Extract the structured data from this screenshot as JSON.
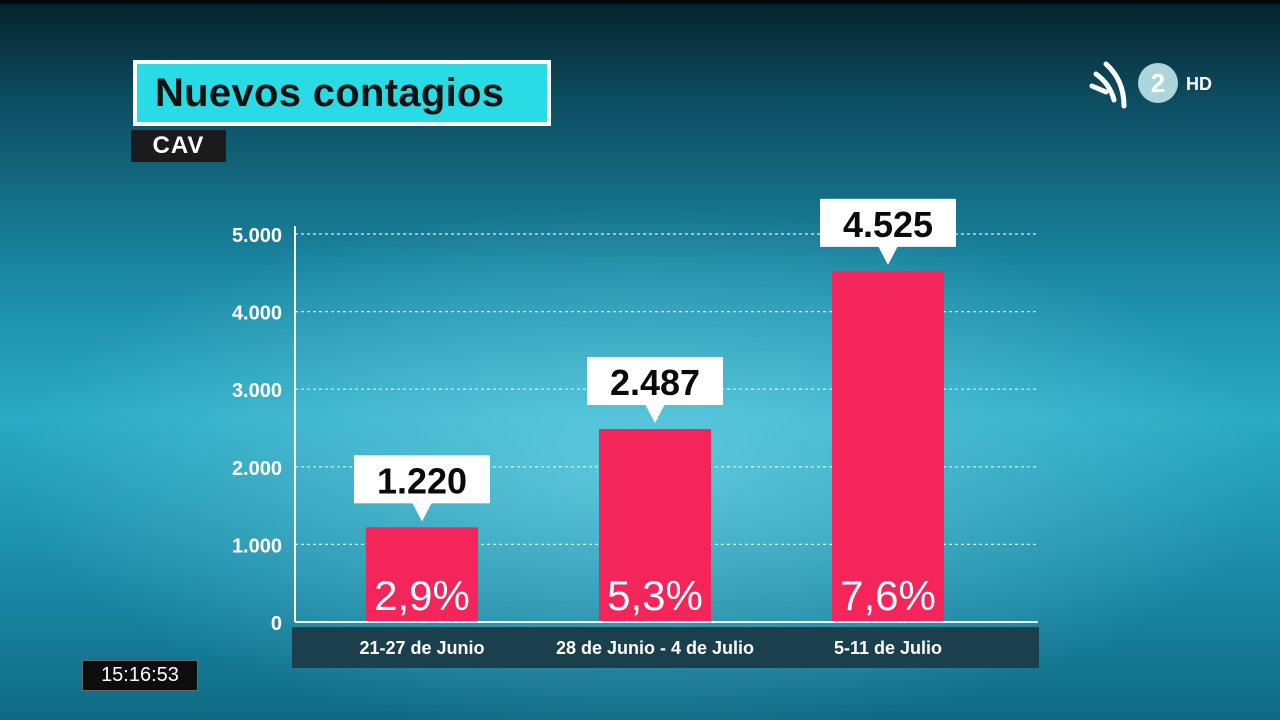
{
  "header": {
    "title": "Nuevos contagios",
    "region": "CAV"
  },
  "channel": {
    "number": "2",
    "quality": "HD"
  },
  "clock": {
    "time": "15:16:53"
  },
  "colors": {
    "bar": "#f3255a",
    "title_bg": "#28dbe4",
    "axis_band": "#1b3f4d"
  },
  "chart_data": {
    "type": "bar",
    "categories": [
      "21-27 de Junio",
      "28 de Junio - 4 de Julio",
      "5-11 de Julio"
    ],
    "values": [
      1220,
      2487,
      4525
    ],
    "value_labels": [
      "1.220",
      "2.487",
      "4.525"
    ],
    "bar_labels": [
      "2,9%",
      "5,3%",
      "7,6%"
    ],
    "yticks": [
      0,
      1000,
      2000,
      3000,
      4000,
      5000
    ],
    "ytick_labels": [
      "0",
      "1.000",
      "2.000",
      "3.000",
      "4.000",
      "5.000"
    ],
    "ylim": [
      0,
      5000
    ],
    "grid": true,
    "title": "",
    "xlabel": "",
    "ylabel": ""
  }
}
